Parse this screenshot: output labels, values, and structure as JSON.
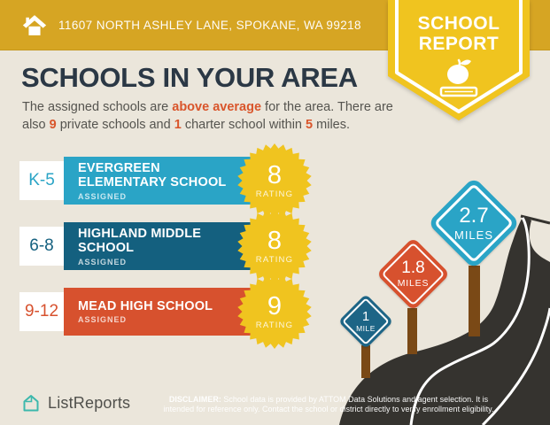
{
  "header": {
    "address": "11607 NORTH ASHLEY LANE, SPOKANE, WA 99218",
    "badge": {
      "line1": "SCHOOL",
      "line2": "REPORT"
    }
  },
  "intro": {
    "title": "SCHOOLS IN YOUR AREA",
    "subtitle_parts": {
      "t1": "The assigned schools are ",
      "h1": "above average",
      "t2": " for the area. There are also ",
      "h2": "9",
      "t3": " private schools and ",
      "h3": "1",
      "t4": " charter school within ",
      "h4": "5",
      "t5": " miles."
    }
  },
  "schools": [
    {
      "grades": "K-5",
      "name": "EVERGREEN ELEMENTARY SCHOOL",
      "status": "ASSIGNED",
      "rating": "8",
      "rating_label": "RATING",
      "color": "#2AA4C6"
    },
    {
      "grades": "6-8",
      "name": "HIGHLAND MIDDLE SCHOOL",
      "status": "ASSIGNED",
      "rating": "8",
      "rating_label": "RATING",
      "color": "#14607F"
    },
    {
      "grades": "9-12",
      "name": "MEAD HIGH SCHOOL",
      "status": "ASSIGNED",
      "rating": "9",
      "rating_label": "RATING",
      "color": "#D7512E"
    }
  ],
  "distance_signs": [
    {
      "value": "1",
      "unit": "MILE",
      "color": "#1D6586"
    },
    {
      "value": "1.8",
      "unit": "MILES",
      "color": "#D7512E"
    },
    {
      "value": "2.7",
      "unit": "MILES",
      "color": "#2AA4C6"
    }
  ],
  "footer": {
    "brand": "ListReports",
    "disclaimer_label": "DISCLAIMER:",
    "disclaimer_text": " School data is provided by ATTOM Data Solutions and agent selection. It is intended for reference only. Contact the school or district directly to verify enrollment eligibility."
  },
  "colors": {
    "header_gold": "#D6A523",
    "badge_yellow": "#F0C41F",
    "background_cream": "#EBE6DB",
    "title_navy": "#2B3845",
    "body_text": "#55544F",
    "accent_orange": "#D9552B",
    "road_dark": "#35332F",
    "post_brown": "#7A4916",
    "brand_teal": "#3CB8AC"
  }
}
